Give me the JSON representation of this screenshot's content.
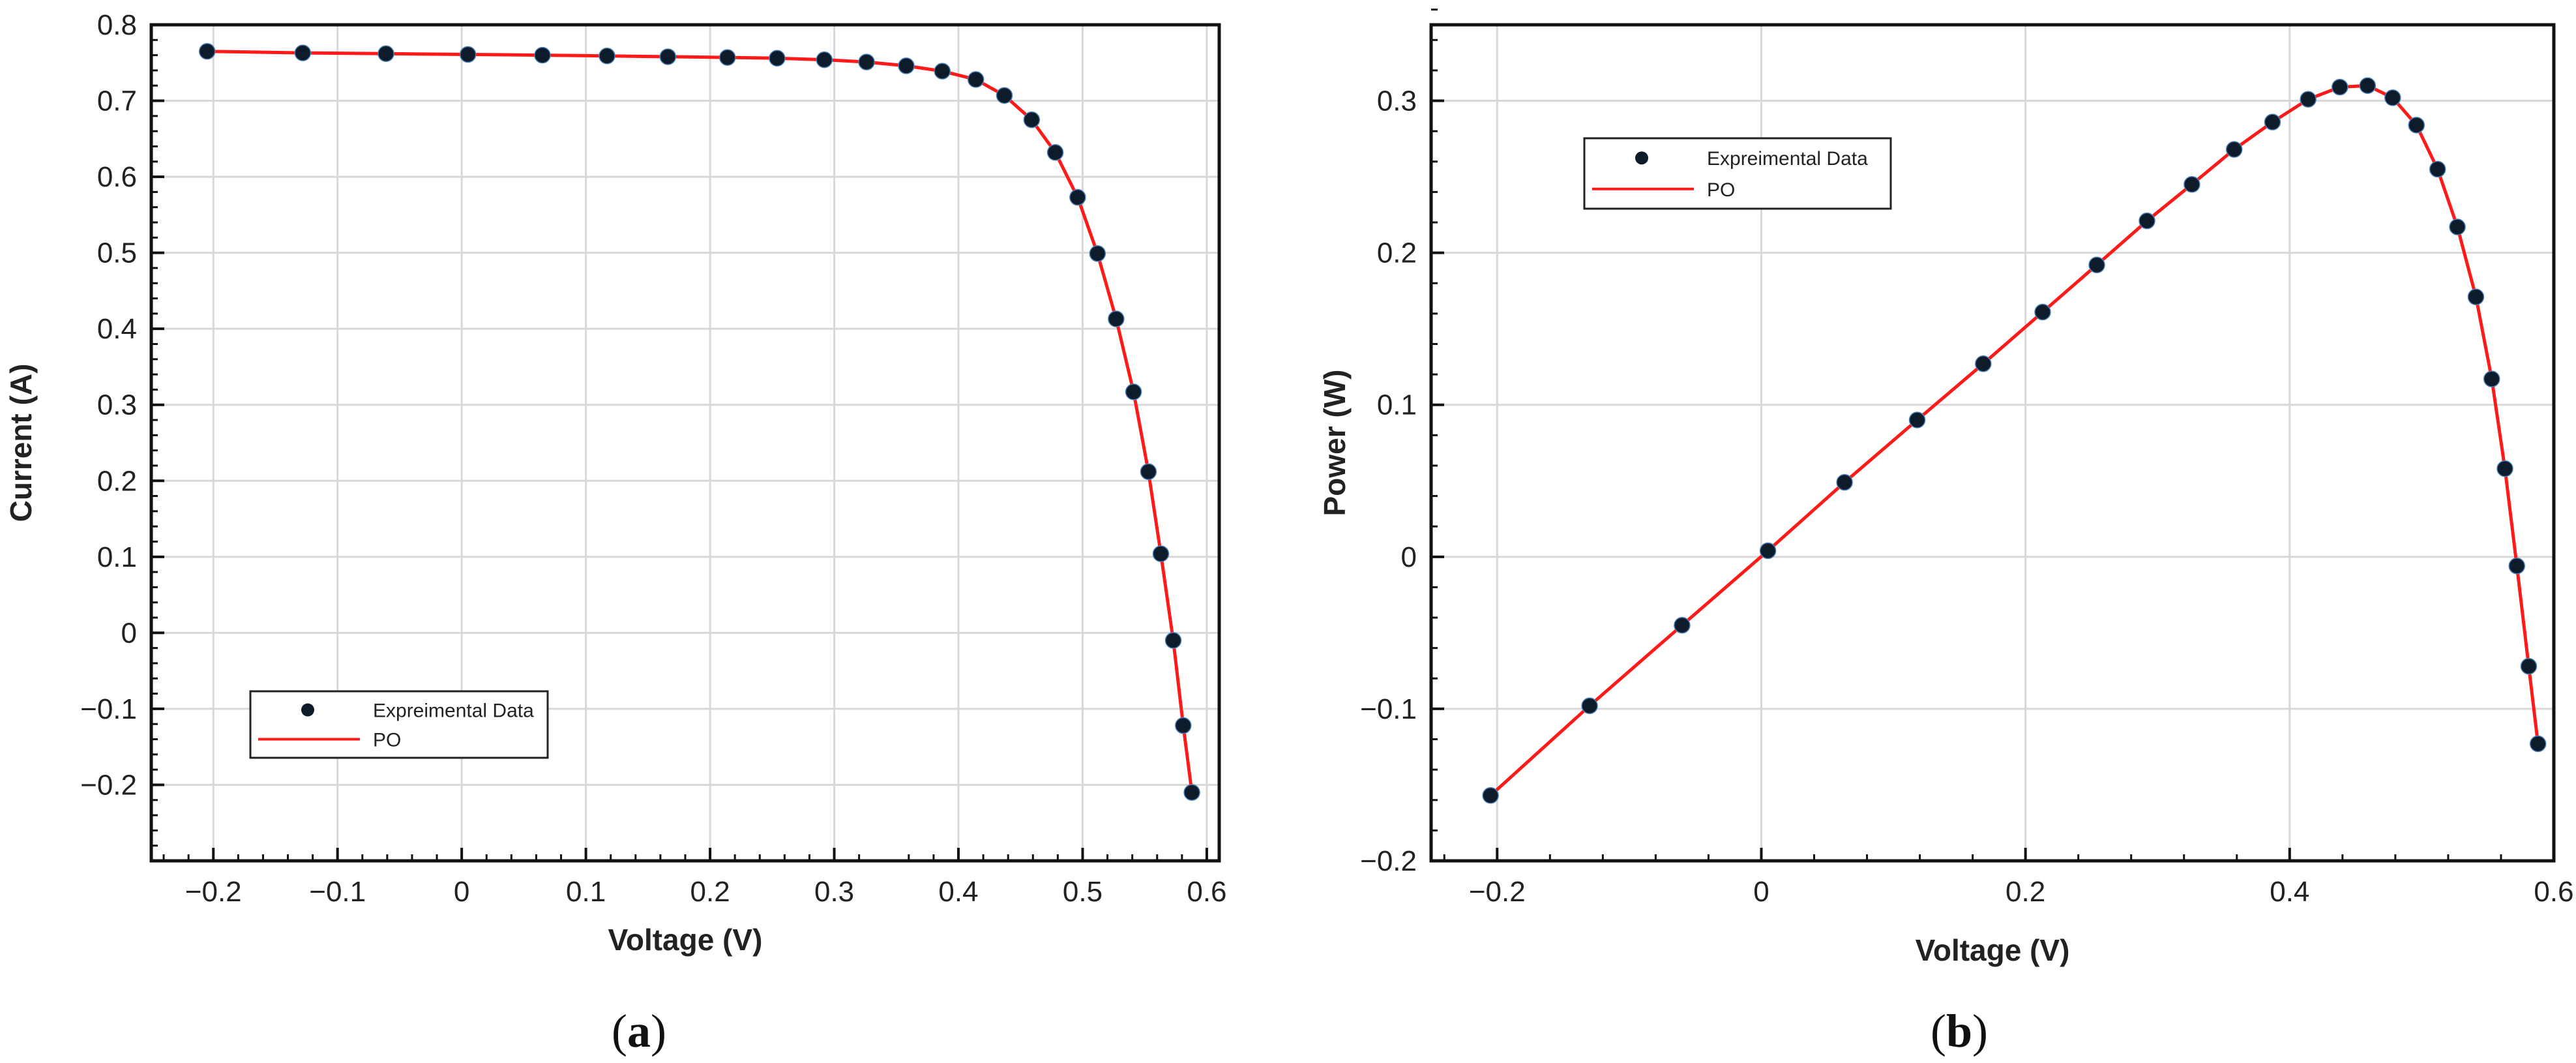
{
  "chart_data": [
    {
      "type": "line",
      "panel_label": "a",
      "xlabel": "Voltage (V)",
      "ylabel": "Current (A)",
      "xlim": [
        -0.25,
        0.61
      ],
      "ylim": [
        -0.3,
        0.8
      ],
      "x_ticks": [
        -0.2,
        -0.1,
        0,
        0.1,
        0.2,
        0.3,
        0.4,
        0.5,
        0.6
      ],
      "x_tick_labels": [
        "−0.2",
        "−0.1",
        "0",
        "0.1",
        "0.2",
        "0.3",
        "0.4",
        "0.5",
        "0.6"
      ],
      "y_ticks": [
        -0.2,
        -0.1,
        0,
        0.1,
        0.2,
        0.3,
        0.4,
        0.5,
        0.6,
        0.7,
        0.8
      ],
      "y_tick_labels": [
        "−0.2",
        "−0.1",
        "0",
        "0.1",
        "0.2",
        "0.3",
        "0.4",
        "0.5",
        "0.6",
        "0.7",
        "0.8"
      ],
      "grid": true,
      "legend_position": "bottom-left",
      "series": [
        {
          "name": "Expreimental Data",
          "kind": "scatter",
          "color": "#0d1b2a",
          "x": [
            -0.205,
            -0.128,
            -0.061,
            0.005,
            0.065,
            0.117,
            0.166,
            0.214,
            0.254,
            0.292,
            0.326,
            0.358,
            0.387,
            0.414,
            0.437,
            0.459,
            0.478,
            0.496,
            0.512,
            0.527,
            0.541,
            0.553,
            0.563,
            0.573,
            0.581,
            0.588
          ],
          "y": [
            0.765,
            0.763,
            0.762,
            0.761,
            0.76,
            0.759,
            0.758,
            0.757,
            0.756,
            0.754,
            0.751,
            0.746,
            0.739,
            0.728,
            0.707,
            0.675,
            0.632,
            0.573,
            0.499,
            0.413,
            0.317,
            0.212,
            0.104,
            -0.01,
            -0.122,
            -0.21
          ]
        },
        {
          "name": "PO",
          "kind": "line",
          "color": "#ff1a1a",
          "x": [
            -0.205,
            -0.128,
            -0.061,
            0.005,
            0.065,
            0.117,
            0.166,
            0.214,
            0.254,
            0.292,
            0.326,
            0.358,
            0.387,
            0.414,
            0.437,
            0.459,
            0.478,
            0.496,
            0.512,
            0.527,
            0.541,
            0.553,
            0.563,
            0.573,
            0.581,
            0.588
          ],
          "y": [
            0.765,
            0.763,
            0.762,
            0.761,
            0.76,
            0.759,
            0.758,
            0.757,
            0.756,
            0.754,
            0.751,
            0.746,
            0.739,
            0.728,
            0.707,
            0.675,
            0.632,
            0.573,
            0.499,
            0.413,
            0.317,
            0.212,
            0.104,
            -0.01,
            -0.122,
            -0.21
          ]
        }
      ]
    },
    {
      "type": "line",
      "panel_label": "b",
      "xlabel": "Voltage (V)",
      "ylabel": "Power (W)",
      "xlim": [
        -0.25,
        0.6
      ],
      "ylim": [
        -0.2,
        0.35
      ],
      "x_ticks": [
        -0.2,
        0,
        0.2,
        0.4,
        0.6
      ],
      "x_tick_labels": [
        "−0.2",
        "0",
        "0.2",
        "0.4",
        "0.6"
      ],
      "y_ticks": [
        -0.2,
        -0.1,
        0,
        0.1,
        0.2,
        0.3
      ],
      "y_tick_labels": [
        "−0.2",
        "−0.1",
        "0",
        "0.1",
        "0.2",
        "0.3"
      ],
      "grid": true,
      "legend_position": "top-left",
      "series": [
        {
          "name": "Expreimental Data",
          "kind": "scatter",
          "color": "#0d1b2a",
          "x": [
            -0.205,
            -0.13,
            -0.06,
            0.005,
            0.063,
            0.118,
            0.168,
            0.213,
            0.254,
            0.292,
            0.326,
            0.358,
            0.387,
            0.414,
            0.438,
            0.459,
            0.478,
            0.496,
            0.512,
            0.527,
            0.541,
            0.553,
            0.563,
            0.572,
            0.581,
            0.588
          ],
          "y": [
            -0.157,
            -0.098,
            -0.045,
            0.004,
            0.049,
            0.09,
            0.127,
            0.161,
            0.192,
            0.221,
            0.245,
            0.268,
            0.286,
            0.301,
            0.309,
            0.31,
            0.302,
            0.284,
            0.255,
            0.217,
            0.171,
            0.117,
            0.058,
            -0.006,
            -0.072,
            -0.123
          ]
        },
        {
          "name": "PO",
          "kind": "line",
          "color": "#ff1a1a",
          "x": [
            -0.205,
            -0.13,
            -0.06,
            0.005,
            0.063,
            0.118,
            0.168,
            0.213,
            0.254,
            0.292,
            0.326,
            0.358,
            0.387,
            0.414,
            0.438,
            0.459,
            0.478,
            0.496,
            0.512,
            0.527,
            0.541,
            0.553,
            0.563,
            0.572,
            0.581,
            0.588
          ],
          "y": [
            -0.157,
            -0.098,
            -0.045,
            0.004,
            0.049,
            0.09,
            0.127,
            0.161,
            0.192,
            0.221,
            0.245,
            0.268,
            0.286,
            0.301,
            0.309,
            0.31,
            0.302,
            0.284,
            0.255,
            0.217,
            0.171,
            0.117,
            0.058,
            -0.006,
            -0.072,
            -0.123
          ]
        }
      ]
    }
  ]
}
